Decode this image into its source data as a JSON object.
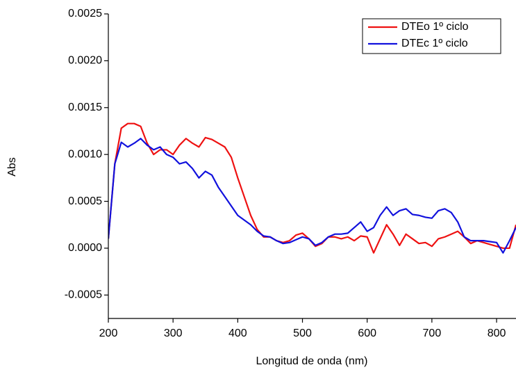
{
  "chart_data": {
    "type": "line",
    "x_label": "Longitud de onda (nm)",
    "y_label": "Abs",
    "xlim": [
      200,
      830
    ],
    "ylim": [
      -0.00075,
      0.0025
    ],
    "xticks": [
      200,
      300,
      400,
      500,
      600,
      700,
      800
    ],
    "yticks": [
      {
        "value": -0.0005,
        "label": "-0.0005"
      },
      {
        "value": 0,
        "label": "0.0000"
      },
      {
        "value": 0.0005,
        "label": "0.0005"
      },
      {
        "value": 0.001,
        "label": "0.0010"
      },
      {
        "value": 0.0015,
        "label": "0.0015"
      },
      {
        "value": 0.002,
        "label": "0.0020"
      },
      {
        "value": 0.0025,
        "label": "0.0025"
      }
    ],
    "legend": "top-right",
    "x": [
      200,
      210,
      220,
      230,
      240,
      250,
      260,
      270,
      280,
      290,
      300,
      310,
      320,
      330,
      340,
      350,
      360,
      370,
      380,
      390,
      400,
      410,
      420,
      430,
      440,
      450,
      460,
      470,
      480,
      490,
      500,
      510,
      520,
      530,
      540,
      550,
      560,
      570,
      580,
      590,
      600,
      610,
      620,
      630,
      640,
      650,
      660,
      670,
      680,
      690,
      700,
      710,
      720,
      730,
      740,
      750,
      760,
      770,
      780,
      790,
      800,
      810,
      820,
      830
    ],
    "series": [
      {
        "name": "DTEo 1º ciclo",
        "color": "#ee1111",
        "values": [
          0.0001,
          0.0009,
          0.00128,
          0.00133,
          0.00133,
          0.0013,
          0.00112,
          0.001,
          0.00105,
          0.00105,
          0.001,
          0.0011,
          0.00117,
          0.00112,
          0.00108,
          0.00118,
          0.00116,
          0.00112,
          0.00108,
          0.00097,
          0.00075,
          0.00055,
          0.00035,
          0.0002,
          0.00012,
          0.00012,
          8e-05,
          6e-05,
          8e-05,
          0.00014,
          0.00016,
          0.0001,
          2e-05,
          5e-05,
          0.00012,
          0.00012,
          0.0001,
          0.00012,
          8e-05,
          0.00013,
          0.00012,
          -5e-05,
          0.0001,
          0.00025,
          0.00015,
          3e-05,
          0.00015,
          0.0001,
          5e-05,
          6e-05,
          2e-05,
          0.0001,
          0.00012,
          0.00015,
          0.00018,
          0.00012,
          5e-05,
          8e-05,
          6e-05,
          4e-05,
          2e-05,
          0,
          0,
          0.00025
        ]
      },
      {
        "name": "DTEc 1º ciclo",
        "color": "#1111dd",
        "values": [
          0.0001,
          0.0009,
          0.00113,
          0.00108,
          0.00112,
          0.00117,
          0.0011,
          0.00105,
          0.00108,
          0.001,
          0.00097,
          0.0009,
          0.00092,
          0.00085,
          0.00075,
          0.00082,
          0.00078,
          0.00065,
          0.00055,
          0.00045,
          0.00035,
          0.0003,
          0.00025,
          0.00018,
          0.00013,
          0.00012,
          8e-05,
          5e-05,
          6e-05,
          9e-05,
          0.00012,
          0.0001,
          3e-05,
          6e-05,
          0.00012,
          0.00015,
          0.00015,
          0.00016,
          0.00022,
          0.00028,
          0.00018,
          0.00022,
          0.00035,
          0.00044,
          0.00035,
          0.0004,
          0.00042,
          0.00036,
          0.00035,
          0.00033,
          0.00032,
          0.0004,
          0.00042,
          0.00038,
          0.00028,
          0.00012,
          8e-05,
          8e-05,
          8e-05,
          7e-05,
          6e-05,
          -5e-05,
          8e-05,
          0.00022
        ]
      }
    ]
  }
}
